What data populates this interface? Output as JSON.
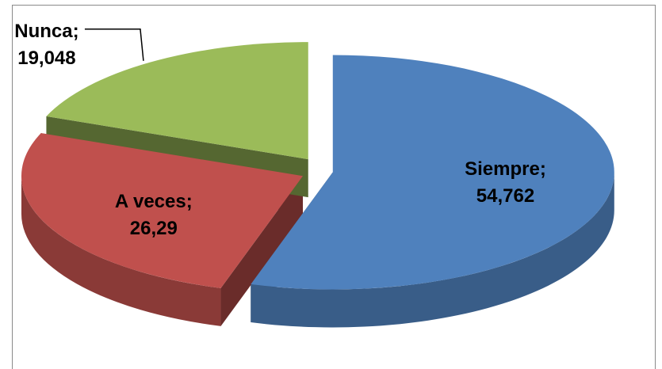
{
  "chart_data": {
    "type": "pie",
    "style": "exploded-3d",
    "categories": [
      "Siempre",
      "A veces",
      "Nunca"
    ],
    "values": [
      54.762,
      26.29,
      19.048
    ],
    "value_labels": [
      "54,762",
      "26,29",
      "19,048"
    ],
    "colors": [
      "#4f81bd",
      "#c0504d",
      "#9bbb59"
    ],
    "label_separator": ";",
    "legend": "none"
  }
}
